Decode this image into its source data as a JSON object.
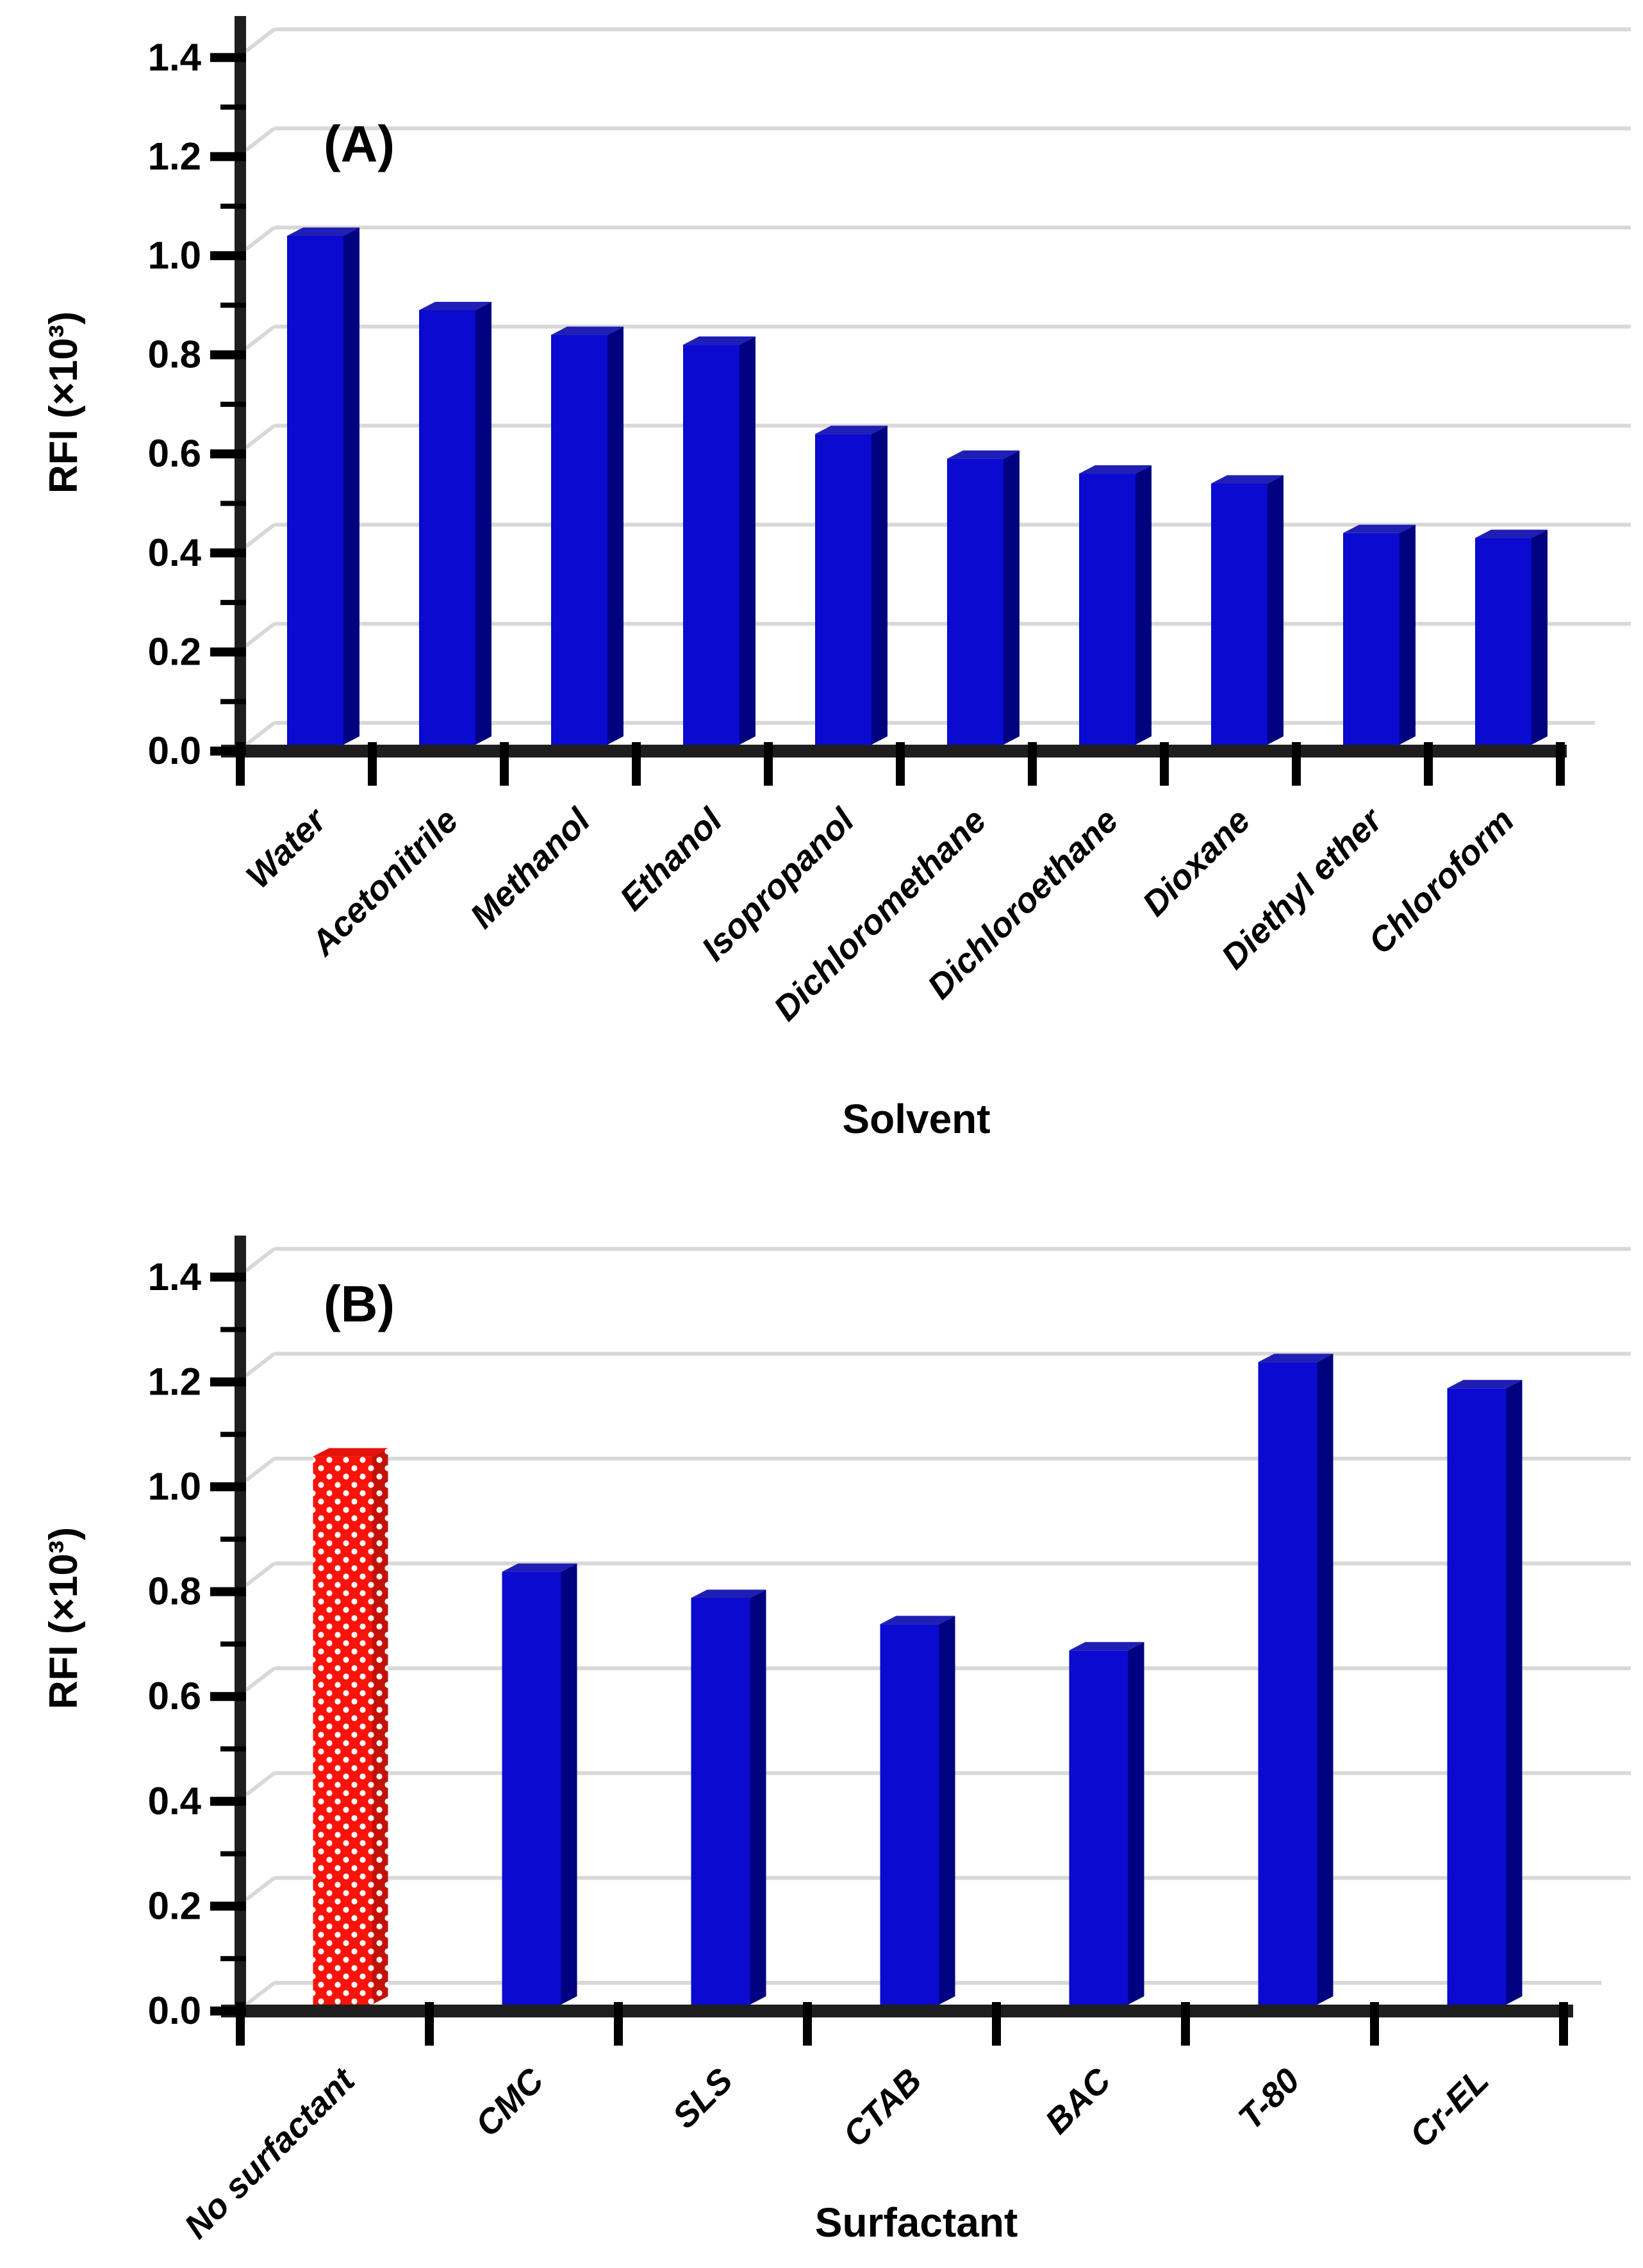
{
  "figure": {
    "background": "#ffffff",
    "panels": [
      "(A)",
      "(B)"
    ]
  },
  "colors": {
    "bar_blue_front": "#0a0ad0",
    "bar_blue_side": "#000280",
    "bar_blue_top": "#1f1fb6",
    "bar_red_front": "#f9130a",
    "bar_red_side": "#c41108",
    "bar_red_top": "#e4130c",
    "pattern_dot": "#ffffff",
    "gridline": "#d8d8d8",
    "axis": "#1e1e1e",
    "text": "#000000"
  },
  "chart_data": [
    {
      "type": "bar",
      "panel_label": "(A)",
      "xlabel": "Solvent",
      "ylabel": "RFI (×10³)",
      "ylim": [
        0.0,
        1.4
      ],
      "ytick_step": 0.2,
      "ytick_labels": [
        "0.0",
        "0.2",
        "0.4",
        "0.6",
        "0.8",
        "1.0",
        "1.2",
        "1.4"
      ],
      "grid": true,
      "style_3d": true,
      "legend": "none",
      "categories": [
        "Water",
        "Acetonitrile",
        "Methanol",
        "Ethanol",
        "Isopropanol",
        "Dichloromethane",
        "Dichloroethane",
        "Dioxane",
        "Diethyl ether",
        "Chloroform"
      ],
      "values": [
        1.0,
        0.85,
        0.8,
        0.78,
        0.6,
        0.55,
        0.52,
        0.5,
        0.4,
        0.39
      ],
      "bar_style": [
        "blue",
        "blue",
        "blue",
        "blue",
        "blue",
        "blue",
        "blue",
        "blue",
        "blue",
        "blue"
      ]
    },
    {
      "type": "bar",
      "panel_label": "(B)",
      "xlabel": "Surfactant",
      "ylabel": "RFI (×10³)",
      "ylim": [
        0.0,
        1.4
      ],
      "ytick_step": 0.2,
      "ytick_labels": [
        "0.0",
        "0.2",
        "0.4",
        "0.6",
        "0.8",
        "1.0",
        "1.2",
        "1.4"
      ],
      "grid": true,
      "style_3d": true,
      "legend": "none",
      "categories": [
        "No surfactant",
        "CMC",
        "SLS",
        "CTAB",
        "BAC",
        "T-80",
        "Cr-EL"
      ],
      "values": [
        1.02,
        0.8,
        0.75,
        0.7,
        0.65,
        1.2,
        1.15
      ],
      "bar_style": [
        "red-dotted",
        "blue",
        "blue",
        "blue",
        "blue",
        "blue",
        "blue"
      ]
    }
  ]
}
